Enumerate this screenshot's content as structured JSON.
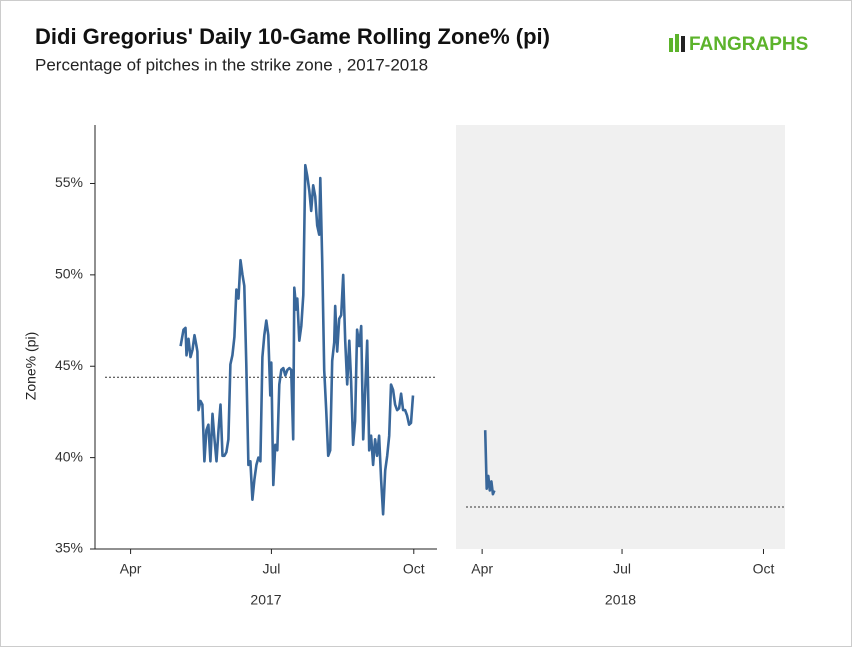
{
  "logo": "FANGRAPHS",
  "chart_data": [
    {
      "type": "line",
      "title": "Didi Gregorius' Daily 10-Game Rolling Zone% (pi)",
      "subtitle": "Percentage of pitches in the strike zone , 2017-2018",
      "ylabel": "Zone% (pi)",
      "xlabel": "2017",
      "color": "#39679a",
      "x": [
        123.3,
        125.2,
        126.5,
        127.1,
        128.4,
        129.7,
        131.0,
        132.3,
        133.6,
        134.2,
        134.9,
        136.2,
        137.4,
        138.7,
        140.0,
        141.3,
        142.6,
        143.9,
        145.2,
        146.5,
        147.8,
        149.1,
        150.4,
        151.6,
        152.9,
        154.2,
        155.5,
        156.8,
        158.1,
        159.4,
        160.7,
        162.0,
        163.3,
        164.5,
        165.8,
        167.1,
        168.4,
        169.7,
        171.0,
        172.3,
        173.6,
        174.9,
        176.2,
        177.4,
        178.7,
        180.0,
        181.3,
        181.9,
        183.2,
        184.5,
        185.8,
        187.1,
        188.4,
        189.7,
        191.0,
        192.3,
        193.6,
        194.8,
        196.1,
        196.8,
        198.1,
        198.7,
        200.0,
        201.3,
        202.6,
        203.9,
        205.2,
        206.5,
        207.7,
        209.0,
        210.3,
        211.6,
        212.9,
        213.6,
        214.8,
        216.1,
        217.4,
        218.7,
        220.0,
        221.3,
        222.6,
        223.2,
        224.5,
        225.8,
        227.1,
        228.4,
        229.7,
        231.0,
        232.3,
        233.5,
        234.8,
        236.1,
        237.4,
        238.7,
        240.0,
        241.3,
        242.6,
        243.9,
        245.2,
        246.4,
        247.7,
        249.0,
        250.3,
        251.6,
        252.9,
        254.2,
        255.5,
        256.8,
        258.1,
        259.3,
        260.6,
        261.9,
        263.2,
        264.5,
        265.8,
        267.1,
        268.4,
        269.7,
        271.0,
        272.2,
        273.5
      ],
      "values": [
        46.1,
        47.0,
        47.1,
        45.6,
        46.5,
        45.5,
        45.9,
        46.7,
        46.1,
        45.8,
        42.6,
        43.1,
        42.9,
        39.8,
        41.5,
        41.8,
        39.8,
        42.4,
        41.0,
        39.8,
        41.5,
        42.9,
        40.1,
        40.1,
        40.3,
        41.0,
        45.1,
        45.6,
        46.6,
        49.2,
        48.7,
        50.8,
        50.0,
        49.4,
        45.1,
        39.6,
        39.8,
        37.7,
        38.8,
        39.6,
        40.0,
        39.8,
        45.5,
        46.7,
        47.5,
        46.7,
        43.4,
        45.2,
        38.5,
        40.7,
        40.4,
        44.0,
        44.8,
        44.9,
        44.5,
        44.8,
        44.9,
        44.8,
        41.0,
        49.3,
        48.1,
        48.7,
        46.4,
        47.2,
        48.9,
        56.0,
        55.4,
        54.6,
        53.5,
        54.9,
        54.3,
        52.7,
        52.2,
        55.3,
        50.8,
        44.8,
        42.6,
        40.1,
        40.4,
        45.3,
        46.3,
        48.3,
        45.8,
        47.6,
        47.8,
        50.0,
        46.4,
        44.0,
        46.4,
        44.2,
        40.7,
        42.0,
        47.0,
        46.1,
        47.2,
        41.0,
        43.7,
        46.4,
        40.4,
        41.2,
        39.6,
        41.0,
        40.1,
        41.2,
        38.8,
        36.9,
        39.3,
        40.1,
        41.2,
        44.0,
        43.7,
        42.9,
        42.6,
        42.7,
        43.5,
        42.6,
        42.6,
        42.3,
        41.8,
        41.9,
        43.4
      ],
      "reference_line": 44.4,
      "xlim": [
        68,
        289
      ],
      "xticks": [
        {
          "value": 91,
          "label": "Apr"
        },
        {
          "value": 182,
          "label": "Jul"
        },
        {
          "value": 274,
          "label": "Oct"
        }
      ],
      "ylim": [
        35,
        58.2
      ],
      "yticks": [
        {
          "value": 35,
          "label": "35%"
        },
        {
          "value": 40,
          "label": "40%"
        },
        {
          "value": 45,
          "label": "45%"
        },
        {
          "value": 50,
          "label": "50%"
        },
        {
          "value": 55,
          "label": "55%"
        }
      ],
      "background": "#ffffff"
    },
    {
      "type": "line",
      "xlabel": "2018",
      "color": "#39679a",
      "x": [
        93,
        94,
        95,
        96,
        97,
        98,
        99
      ],
      "values": [
        41.5,
        38.3,
        39.0,
        38.2,
        38.7,
        38.0,
        38.2
      ],
      "reference_line": 37.3,
      "xlim": [
        74,
        288
      ],
      "xticks": [
        {
          "value": 91,
          "label": "Apr"
        },
        {
          "value": 182,
          "label": "Jul"
        },
        {
          "value": 274,
          "label": "Oct"
        }
      ],
      "ylim": [
        35,
        58.2
      ],
      "background": "#f0f0f0"
    }
  ]
}
